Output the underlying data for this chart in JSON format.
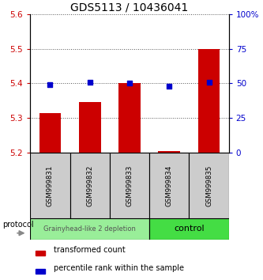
{
  "title": "GDS5113 / 10436041",
  "samples": [
    "GSM999831",
    "GSM999832",
    "GSM999833",
    "GSM999834",
    "GSM999835"
  ],
  "bar_values": [
    5.315,
    5.345,
    5.4,
    5.205,
    5.5
  ],
  "bar_base": 5.2,
  "percentile_values": [
    49,
    51,
    50,
    48,
    51
  ],
  "percentile_scale_min": 0,
  "percentile_scale_max": 100,
  "ylim": [
    5.2,
    5.6
  ],
  "yticks_left": [
    5.2,
    5.3,
    5.4,
    5.5,
    5.6
  ],
  "yticks_right": [
    0,
    25,
    50,
    75,
    100
  ],
  "ytick_labels_right": [
    "0",
    "25",
    "50",
    "75",
    "100%"
  ],
  "bar_color": "#cc0000",
  "percentile_color": "#0000cc",
  "group1_label": "Grainyhead-like 2 depletion",
  "group2_label": "control",
  "group1_color": "#99ee99",
  "group2_color": "#44dd44",
  "protocol_label": "protocol",
  "legend_red": "transformed count",
  "legend_blue": "percentile rank within the sample",
  "dotted_grid_color": "#555555",
  "label_bg_color": "#cccccc",
  "title_fontsize": 10
}
